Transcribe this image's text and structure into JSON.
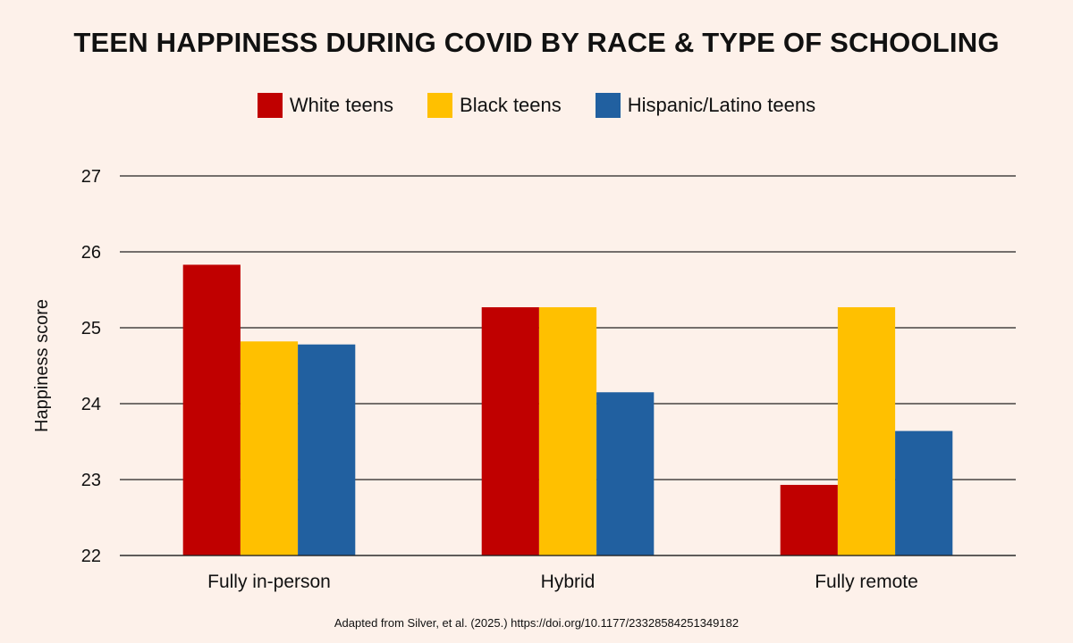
{
  "chart_data": {
    "type": "bar",
    "title": "TEEN HAPPINESS DURING COVID BY RACE & TYPE OF SCHOOLING",
    "ylabel": "Happiness score",
    "xlabel": "",
    "categories": [
      "Fully in-person",
      "Hybrid",
      "Fully remote"
    ],
    "series": [
      {
        "name": "White teens",
        "color": "#c00000",
        "values": [
          25.83,
          25.27,
          22.93
        ]
      },
      {
        "name": "Black teens",
        "color": "#ffc000",
        "values": [
          24.82,
          25.27,
          25.27
        ]
      },
      {
        "name": "Hispanic/Latino teens",
        "color": "#2160a0",
        "values": [
          24.78,
          24.15,
          23.64
        ]
      }
    ],
    "ylim": [
      22,
      27
    ],
    "yticks": [
      22,
      23,
      24,
      25,
      26,
      27
    ],
    "grid": true,
    "legend_position": "top-center",
    "source": "Adapted from Silver, et al. (2025.) https://doi.org/10.1177/23328584251349182"
  }
}
